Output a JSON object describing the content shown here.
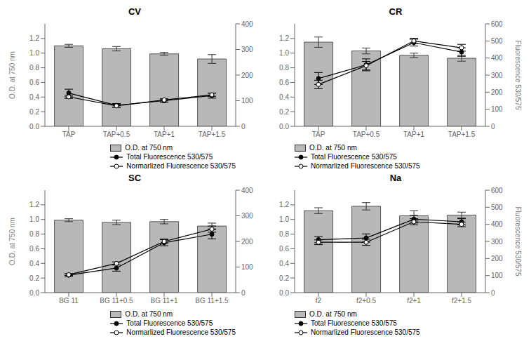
{
  "chart_data": [
    {
      "type": "bar",
      "title": "CV",
      "categories": [
        "TAP",
        "TAP+0.5",
        "TAP+1",
        "TAP+1.5"
      ],
      "ylabel": "O.D. at 750 nm",
      "ylim": [
        0,
        1.4
      ],
      "yticks": [
        {
          "value": 0,
          "label": "0.0"
        },
        0.2,
        0.4,
        0.6,
        0.8,
        {
          "value": 1,
          "label": "1.0"
        },
        1.2
      ],
      "y2lim": [
        0,
        400
      ],
      "y2ticks": [
        0,
        100,
        200,
        300,
        400
      ],
      "legend": "lower right",
      "series": [
        {
          "name": "O.D. at 750 nm",
          "type": "bar",
          "color": "#b8b8b8",
          "values": [
            1.1,
            1.06,
            0.99,
            0.92
          ],
          "errors": [
            0.02,
            0.03,
            0.02,
            0.06
          ]
        },
        {
          "name": "Total Fluorescence 530/575",
          "type": "line",
          "axis": "y2",
          "color": "#000000",
          "marker": "circle",
          "values": [
            130,
            82,
            100,
            120
          ],
          "errors": [
            15,
            7,
            7,
            10
          ]
        },
        {
          "name": "Normarlized Fluorescence 530/575",
          "type": "line",
          "axis": "y2",
          "color": "#000000",
          "marker": "open_circle",
          "values": [
            115,
            80,
            103,
            123
          ],
          "errors": [
            6,
            6,
            4,
            6
          ]
        }
      ]
    },
    {
      "type": "bar",
      "title": "CR",
      "categories": [
        "TAP",
        "TAP+0.5",
        "TAP+1",
        "TAP+1.5"
      ],
      "y2label": "Fluorescence 530/575",
      "ylim": [
        0,
        1.4
      ],
      "yticks": [
        {
          "value": 0,
          "label": "0.0"
        },
        0.2,
        0.4,
        0.6,
        0.8,
        {
          "value": 1,
          "label": "1.0"
        },
        1.2
      ],
      "y2lim": [
        0,
        600
      ],
      "y2ticks": [
        0,
        100,
        200,
        300,
        400,
        500,
        600
      ],
      "legend": "lower left",
      "series": [
        {
          "name": "O.D. at 750 nm",
          "type": "bar",
          "color": "#b8b8b8",
          "values": [
            1.15,
            1.03,
            0.97,
            0.93
          ],
          "errors": [
            0.07,
            0.04,
            0.03,
            0.04
          ]
        },
        {
          "name": "Total Fluorescence 530/575",
          "type": "line",
          "axis": "y2",
          "color": "#000000",
          "marker": "circle",
          "values": [
            280,
            360,
            490,
            435
          ],
          "errors": [
            35,
            35,
            20,
            25
          ]
        },
        {
          "name": "Normarlized Fluorescence 530/575",
          "type": "line",
          "axis": "y2",
          "color": "#000000",
          "marker": "open_circle",
          "values": [
            245,
            355,
            500,
            460
          ],
          "errors": [
            25,
            25,
            15,
            20
          ]
        }
      ]
    },
    {
      "type": "bar",
      "title": "SC",
      "categories": [
        "BG 11",
        "BG 11+0.5",
        "BG 11+1",
        "BG 11+1.5"
      ],
      "ylabel": "O.D. at 750 nm",
      "ylim": [
        0,
        1.4
      ],
      "yticks": [
        {
          "value": 0,
          "label": "0.0"
        },
        0.2,
        0.4,
        0.6,
        0.8,
        {
          "value": 1,
          "label": "1.0"
        },
        1.2
      ],
      "y2lim": [
        0,
        400
      ],
      "y2ticks": [
        0,
        100,
        200,
        300,
        400
      ],
      "legend": "lower right",
      "series": [
        {
          "name": "O.D. at 750 nm",
          "type": "bar",
          "color": "#b8b8b8",
          "values": [
            0.99,
            0.96,
            0.97,
            0.91
          ],
          "errors": [
            0.02,
            0.03,
            0.03,
            0.04
          ]
        },
        {
          "name": "Total Fluorescence 530/575",
          "type": "line",
          "axis": "y2",
          "color": "#000000",
          "marker": "circle",
          "values": [
            68,
            96,
            195,
            228
          ],
          "errors": [
            6,
            12,
            12,
            18
          ]
        },
        {
          "name": "Normarlized Fluorescence 530/575",
          "type": "line",
          "axis": "y2",
          "color": "#000000",
          "marker": "open_circle",
          "values": [
            70,
            114,
            200,
            248
          ],
          "errors": [
            3,
            6,
            9,
            12
          ]
        }
      ]
    },
    {
      "type": "bar",
      "title": "Na",
      "categories": [
        "f2",
        "f2+0.5",
        "f2+1",
        "f2+1.5"
      ],
      "y2label": "Fluorescence 530/575",
      "ylim": [
        0,
        1.4
      ],
      "yticks": [
        {
          "value": 0,
          "label": "0.0"
        },
        0.2,
        0.4,
        0.6,
        0.8,
        {
          "value": 1,
          "label": "1.0"
        },
        1.2
      ],
      "y2lim": [
        0,
        600
      ],
      "y2ticks": [
        0,
        100,
        200,
        300,
        400,
        500,
        600
      ],
      "legend": "lower left",
      "series": [
        {
          "name": "O.D. at 750 nm",
          "type": "bar",
          "color": "#b8b8b8",
          "values": [
            1.12,
            1.18,
            1.05,
            1.06
          ],
          "errors": [
            0.04,
            0.05,
            0.07,
            0.04
          ]
        },
        {
          "name": "Total Fluorescence 530/575",
          "type": "line",
          "axis": "y2",
          "color": "#000000",
          "marker": "circle",
          "values": [
            310,
            320,
            430,
            415
          ],
          "errors": [
            18,
            24,
            22,
            18
          ]
        },
        {
          "name": "Normarlized Fluorescence 530/575",
          "type": "line",
          "axis": "y2",
          "color": "#000000",
          "marker": "open_circle",
          "values": [
            295,
            295,
            415,
            400
          ],
          "errors": [
            14,
            18,
            18,
            14
          ]
        }
      ]
    }
  ]
}
